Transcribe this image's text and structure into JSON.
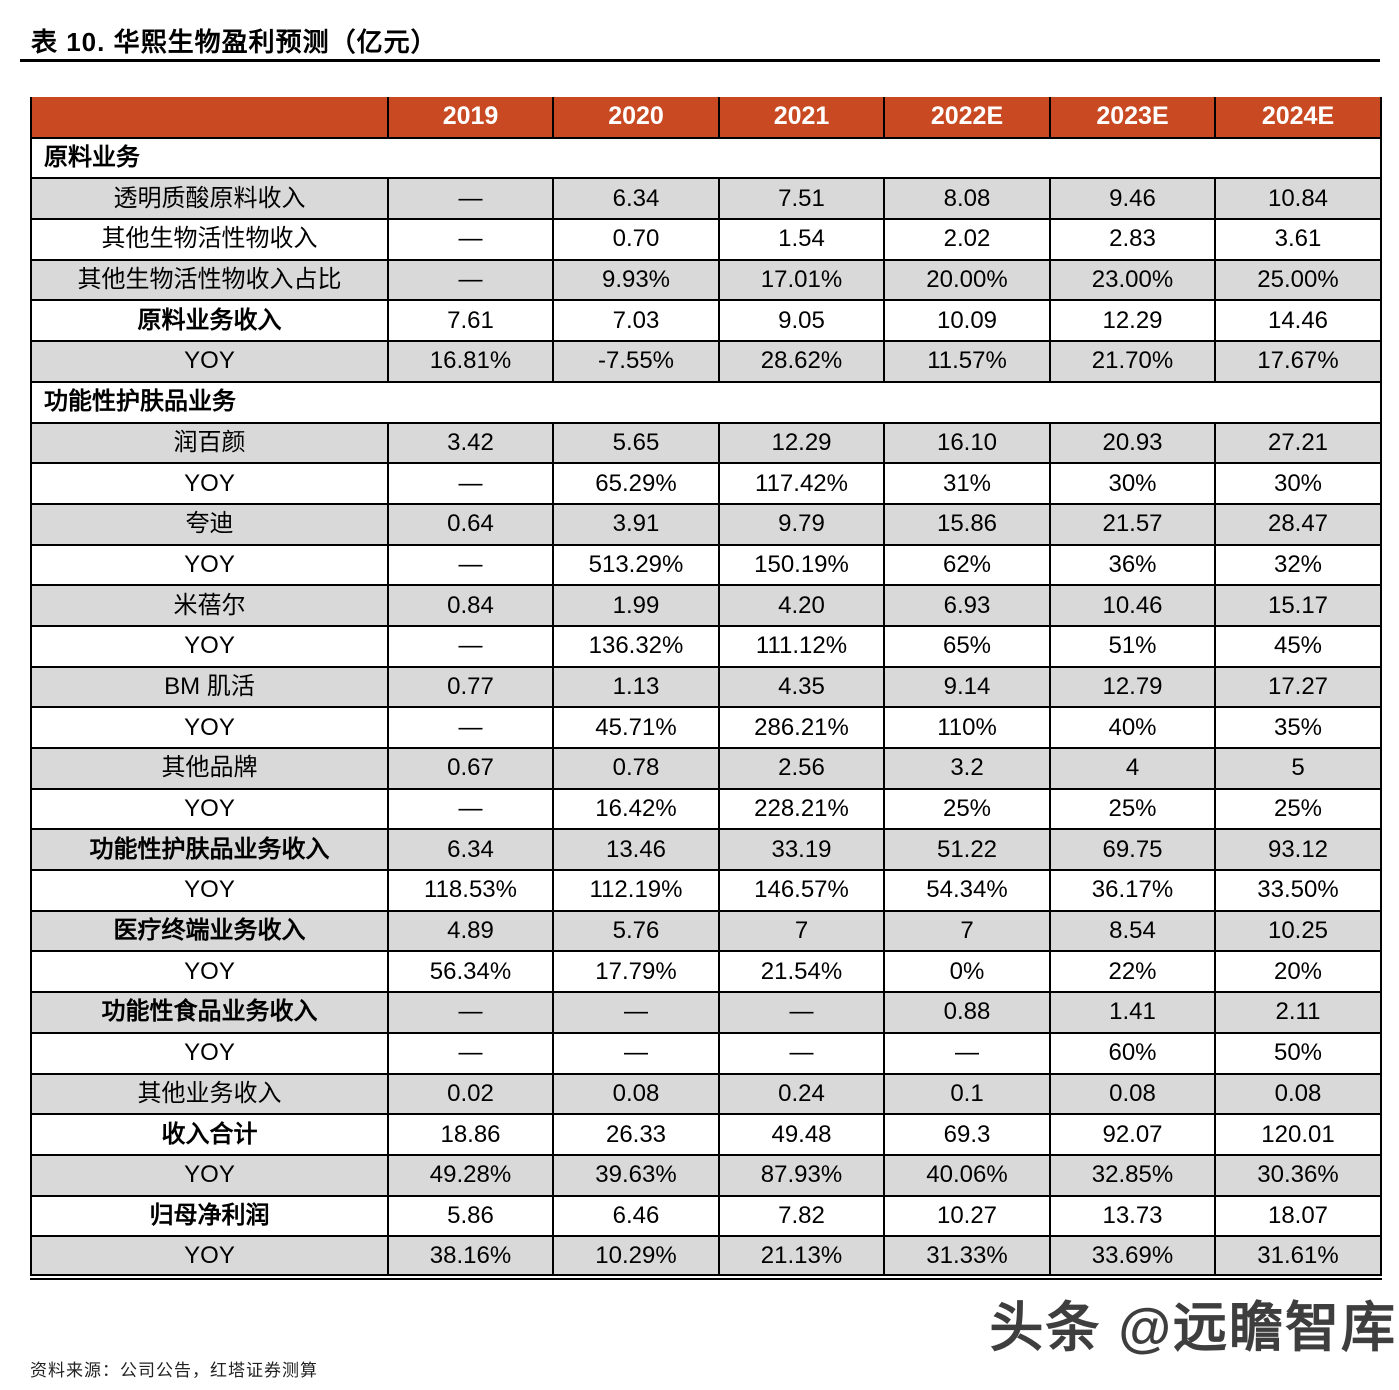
{
  "title": "表 10. 华熙生物盈利预测（亿元）",
  "source": "资料来源：公司公告，红塔证券测算",
  "watermark": {
    "text": "头条 @远瞻智库"
  },
  "colors": {
    "header_bg": "#C94A22",
    "row_shade": "#D9D9D9",
    "border": "#000000",
    "header_text": "#FFFFFF"
  },
  "chart_data": {
    "type": "table",
    "title": "表 10. 华熙生物盈利预测（亿元）",
    "columns": [
      "2019",
      "2020",
      "2021",
      "2022E",
      "2023E",
      "2024E"
    ],
    "corner_label": "",
    "rows": [
      {
        "type": "section",
        "label": "原料业务"
      },
      {
        "type": "data",
        "label": "透明质酸原料收入",
        "bold": false,
        "shaded": true,
        "cells": [
          "—",
          "6.34",
          "7.51",
          "8.08",
          "9.46",
          "10.84"
        ]
      },
      {
        "type": "data",
        "label": "其他生物活性物收入",
        "bold": false,
        "shaded": false,
        "cells": [
          "—",
          "0.70",
          "1.54",
          "2.02",
          "2.83",
          "3.61"
        ]
      },
      {
        "type": "data",
        "label": "其他生物活性物收入占比",
        "bold": false,
        "shaded": true,
        "cells": [
          "—",
          "9.93%",
          "17.01%",
          "20.00%",
          "23.00%",
          "25.00%"
        ]
      },
      {
        "type": "data",
        "label": "原料业务收入",
        "bold": true,
        "shaded": false,
        "cells": [
          "7.61",
          "7.03",
          "9.05",
          "10.09",
          "12.29",
          "14.46"
        ]
      },
      {
        "type": "data",
        "label": "YOY",
        "bold": false,
        "shaded": true,
        "cells": [
          "16.81%",
          "-7.55%",
          "28.62%",
          "11.57%",
          "21.70%",
          "17.67%"
        ]
      },
      {
        "type": "section",
        "label": "功能性护肤品业务"
      },
      {
        "type": "data",
        "label": "润百颜",
        "bold": false,
        "shaded": true,
        "cells": [
          "3.42",
          "5.65",
          "12.29",
          "16.10",
          "20.93",
          "27.21"
        ]
      },
      {
        "type": "data",
        "label": "YOY",
        "bold": false,
        "shaded": false,
        "cells": [
          "—",
          "65.29%",
          "117.42%",
          "31%",
          "30%",
          "30%"
        ]
      },
      {
        "type": "data",
        "label": "夸迪",
        "bold": false,
        "shaded": true,
        "cells": [
          "0.64",
          "3.91",
          "9.79",
          "15.86",
          "21.57",
          "28.47"
        ]
      },
      {
        "type": "data",
        "label": "YOY",
        "bold": false,
        "shaded": false,
        "cells": [
          "—",
          "513.29%",
          "150.19%",
          "62%",
          "36%",
          "32%"
        ]
      },
      {
        "type": "data",
        "label": "米蓓尔",
        "bold": false,
        "shaded": true,
        "cells": [
          "0.84",
          "1.99",
          "4.20",
          "6.93",
          "10.46",
          "15.17"
        ]
      },
      {
        "type": "data",
        "label": "YOY",
        "bold": false,
        "shaded": false,
        "cells": [
          "—",
          "136.32%",
          "111.12%",
          "65%",
          "51%",
          "45%"
        ]
      },
      {
        "type": "data",
        "label": "BM 肌活",
        "bold": false,
        "shaded": true,
        "cells": [
          "0.77",
          "1.13",
          "4.35",
          "9.14",
          "12.79",
          "17.27"
        ]
      },
      {
        "type": "data",
        "label": "YOY",
        "bold": false,
        "shaded": false,
        "cells": [
          "—",
          "45.71%",
          "286.21%",
          "110%",
          "40%",
          "35%"
        ]
      },
      {
        "type": "data",
        "label": "其他品牌",
        "bold": false,
        "shaded": true,
        "cells": [
          "0.67",
          "0.78",
          "2.56",
          "3.2",
          "4",
          "5"
        ]
      },
      {
        "type": "data",
        "label": "YOY",
        "bold": false,
        "shaded": false,
        "cells": [
          "—",
          "16.42%",
          "228.21%",
          "25%",
          "25%",
          "25%"
        ]
      },
      {
        "type": "data",
        "label": "功能性护肤品业务收入",
        "bold": true,
        "shaded": true,
        "cells": [
          "6.34",
          "13.46",
          "33.19",
          "51.22",
          "69.75",
          "93.12"
        ]
      },
      {
        "type": "data",
        "label": "YOY",
        "bold": false,
        "shaded": false,
        "cells": [
          "118.53%",
          "112.19%",
          "146.57%",
          "54.34%",
          "36.17%",
          "33.50%"
        ]
      },
      {
        "type": "data",
        "label": "医疗终端业务收入",
        "bold": true,
        "shaded": true,
        "cells": [
          "4.89",
          "5.76",
          "7",
          "7",
          "8.54",
          "10.25"
        ]
      },
      {
        "type": "data",
        "label": "YOY",
        "bold": false,
        "shaded": false,
        "cells": [
          "56.34%",
          "17.79%",
          "21.54%",
          "0%",
          "22%",
          "20%"
        ]
      },
      {
        "type": "data",
        "label": "功能性食品业务收入",
        "bold": true,
        "shaded": true,
        "cells": [
          "—",
          "—",
          "—",
          "0.88",
          "1.41",
          "2.11"
        ]
      },
      {
        "type": "data",
        "label": "YOY",
        "bold": false,
        "shaded": false,
        "cells": [
          "—",
          "—",
          "—",
          "—",
          "60%",
          "50%"
        ]
      },
      {
        "type": "data",
        "label": "其他业务收入",
        "bold": false,
        "shaded": true,
        "cells": [
          "0.02",
          "0.08",
          "0.24",
          "0.1",
          "0.08",
          "0.08"
        ]
      },
      {
        "type": "data",
        "label": "收入合计",
        "bold": true,
        "shaded": false,
        "cells": [
          "18.86",
          "26.33",
          "49.48",
          "69.3",
          "92.07",
          "120.01"
        ]
      },
      {
        "type": "data",
        "label": "YOY",
        "bold": false,
        "shaded": true,
        "cells": [
          "49.28%",
          "39.63%",
          "87.93%",
          "40.06%",
          "32.85%",
          "30.36%"
        ]
      },
      {
        "type": "data",
        "label": "归母净利润",
        "bold": true,
        "shaded": false,
        "cells": [
          "5.86",
          "6.46",
          "7.82",
          "10.27",
          "13.73",
          "18.07"
        ]
      },
      {
        "type": "data",
        "label": "YOY",
        "bold": false,
        "shaded": true,
        "cells": [
          "38.16%",
          "10.29%",
          "21.13%",
          "31.33%",
          "33.69%",
          "31.61%"
        ]
      }
    ]
  }
}
